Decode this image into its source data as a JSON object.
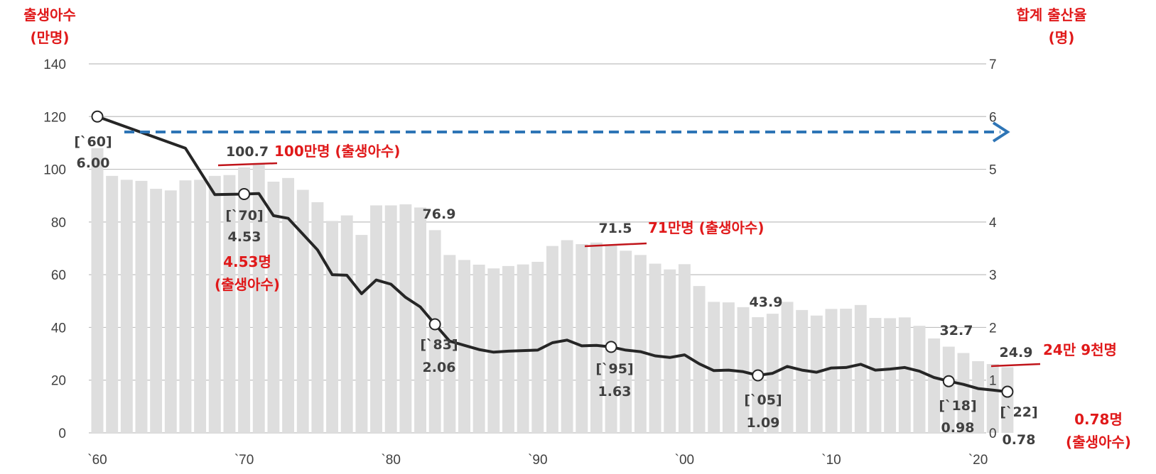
{
  "colors": {
    "bars": "#dedede",
    "line": "#262626",
    "annotation": "#e0191a",
    "arrow": "#2e75b6",
    "grid": "#bfbfbf",
    "text": "#404040"
  },
  "left_axis": {
    "title_line1": "출생아수",
    "title_line2": "(만명)"
  },
  "right_axis": {
    "title_line1": "합계 출산율",
    "title_line2": "(명)"
  },
  "chart_data": {
    "type": "bar+line",
    "years": [
      1960,
      1961,
      1962,
      1963,
      1964,
      1965,
      1966,
      1967,
      1968,
      1969,
      1970,
      1971,
      1972,
      1973,
      1974,
      1975,
      1976,
      1977,
      1978,
      1979,
      1980,
      1981,
      1982,
      1983,
      1984,
      1985,
      1986,
      1987,
      1988,
      1989,
      1990,
      1991,
      1992,
      1993,
      1994,
      1995,
      1996,
      1997,
      1998,
      1999,
      2000,
      2001,
      2002,
      2003,
      2004,
      2005,
      2006,
      2007,
      2008,
      2009,
      2010,
      2011,
      2012,
      2013,
      2014,
      2015,
      2016,
      2017,
      2018,
      2019,
      2020,
      2021,
      2022
    ],
    "births": [
      108.0,
      97.5,
      96.0,
      95.6,
      92.6,
      92.0,
      95.8,
      96.0,
      97.5,
      97.8,
      100.7,
      102.4,
      95.3,
      96.7,
      92.2,
      87.5,
      80.4,
      82.5,
      75.1,
      86.3,
      86.3,
      86.7,
      85.5,
      76.9,
      67.5,
      65.6,
      63.8,
      62.4,
      63.3,
      63.9,
      64.9,
      70.9,
      73.1,
      71.6,
      72.2,
      71.5,
      69.1,
      67.5,
      64.2,
      62.0,
      64.0,
      55.7,
      49.7,
      49.5,
      47.7,
      43.9,
      45.2,
      49.7,
      46.6,
      44.5,
      47.0,
      47.1,
      48.5,
      43.6,
      43.5,
      43.8,
      40.6,
      35.8,
      32.7,
      30.3,
      27.2,
      26.1,
      24.9
    ],
    "fertility": [
      6.0,
      null,
      null,
      null,
      null,
      null,
      5.4,
      null,
      4.52,
      null,
      4.53,
      4.54,
      4.12,
      4.07,
      3.77,
      3.47,
      3.0,
      2.99,
      2.64,
      2.9,
      2.82,
      2.57,
      2.39,
      2.06,
      1.74,
      1.66,
      1.58,
      1.53,
      1.55,
      1.56,
      1.57,
      1.71,
      1.76,
      1.65,
      1.66,
      1.63,
      1.57,
      1.54,
      1.46,
      1.43,
      1.48,
      1.31,
      1.18,
      1.19,
      1.16,
      1.09,
      1.13,
      1.26,
      1.19,
      1.15,
      1.23,
      1.24,
      1.3,
      1.19,
      1.21,
      1.24,
      1.17,
      1.05,
      0.98,
      0.92,
      0.84,
      0.81,
      0.78
    ],
    "marked_points": [
      1960,
      1970,
      1983,
      1995,
      2005,
      2018,
      2022
    ],
    "x_tick_labels": [
      "`60",
      "`70",
      "`80",
      "`90",
      "`00",
      "`10",
      "`20"
    ],
    "left_axis": {
      "ylim": [
        0,
        140
      ],
      "ticks": [
        "0",
        "20",
        "40",
        "60",
        "80",
        "100",
        "120",
        "140"
      ]
    },
    "right_axis": {
      "ylim": [
        0,
        7
      ],
      "ticks": [
        "0",
        "1",
        "2",
        "3",
        "4",
        "5",
        "6",
        "7"
      ]
    },
    "grid": true
  },
  "point_labels": {
    "y1960_year": "[`60]",
    "y1960_value": "6.00",
    "y1970_year": "[`70]",
    "y1970_value": "4.53",
    "y1983_year": "[`83]",
    "y1983_value": "2.06",
    "y1995_year": "[`95]",
    "y1995_value": "1.63",
    "y2005_year": "[`05]",
    "y2005_value": "1.09",
    "y2018_year": "[`18]",
    "y2018_value": "0.98",
    "y2022_year": "[`22]",
    "y2022_value": "0.78"
  },
  "bar_labels": {
    "b1970": "100.7",
    "b1983": "76.9",
    "b1995": "71.5",
    "b2005": "43.9",
    "b2018": "32.7",
    "b2022": "24.9"
  },
  "annotations": {
    "a100": "100만명 (출생아수)",
    "a71": "71만명 (출생아수)",
    "a24": "24만 9천명",
    "a453_1": "4.53명",
    "a453_2": "(출생아수)",
    "a078_1": "0.78명",
    "a078_2": "(출생아수)"
  }
}
